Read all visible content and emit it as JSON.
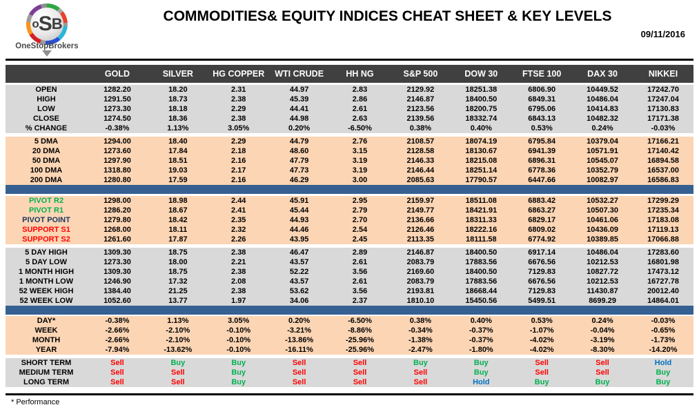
{
  "header": {
    "logo_text": "oSB",
    "logo_name": "OneStopBrokers",
    "title": "COMMODITIES& EQUITY INDICES CHEAT SHEET & KEY LEVELS",
    "date": "09/11/2016"
  },
  "colors": {
    "header_band": "#404040",
    "gray_row": "#d9d9d9",
    "peach_row": "#fcd5b4",
    "separator_blue": "#376092",
    "buy_green": "#00b050",
    "sell_red": "#ff0000",
    "hold_blue": "#0070c0",
    "pivot_navy": "#17375e"
  },
  "table": {
    "columns": [
      "GOLD",
      "SILVER",
      "HG COPPER",
      "WTI CRUDE",
      "HH NG",
      "S&P 500",
      "DOW 30",
      "FTSE 100",
      "DAX 30",
      "NIKKEI"
    ],
    "sections": [
      {
        "id": "ohlc",
        "bg": "gray",
        "rows": [
          {
            "label": "OPEN",
            "values": [
              "1282.20",
              "18.20",
              "2.31",
              "44.97",
              "2.83",
              "2129.92",
              "18251.38",
              "6806.90",
              "10449.52",
              "17242.70"
            ]
          },
          {
            "label": "HIGH",
            "values": [
              "1291.50",
              "18.73",
              "2.38",
              "45.39",
              "2.86",
              "2146.87",
              "18400.50",
              "6849.31",
              "10486.04",
              "17247.04"
            ]
          },
          {
            "label": "LOW",
            "values": [
              "1273.30",
              "18.18",
              "2.29",
              "44.41",
              "2.61",
              "2123.56",
              "18200.75",
              "6795.06",
              "10414.83",
              "17130.83"
            ]
          },
          {
            "label": "CLOSE",
            "values": [
              "1274.50",
              "18.36",
              "2.38",
              "44.98",
              "2.63",
              "2139.56",
              "18332.74",
              "6843.13",
              "10482.32",
              "17171.38"
            ]
          },
          {
            "label": "% CHANGE",
            "values": [
              "-0.38%",
              "1.13%",
              "3.05%",
              "0.20%",
              "-6.50%",
              "0.38%",
              "0.40%",
              "0.53%",
              "0.24%",
              "-0.03%"
            ]
          }
        ]
      },
      {
        "id": "dma",
        "bg": "peach",
        "rows": [
          {
            "label": "5 DMA",
            "values": [
              "1294.00",
              "18.40",
              "2.29",
              "44.79",
              "2.76",
              "2108.57",
              "18074.19",
              "6795.84",
              "10379.04",
              "17166.21"
            ]
          },
          {
            "label": "20 DMA",
            "values": [
              "1273.60",
              "17.84",
              "2.18",
              "48.60",
              "3.15",
              "2128.58",
              "18130.67",
              "6941.39",
              "10571.91",
              "17140.42"
            ]
          },
          {
            "label": "50 DMA",
            "values": [
              "1297.90",
              "18.51",
              "2.16",
              "47.79",
              "3.19",
              "2146.33",
              "18215.08",
              "6896.31",
              "10545.07",
              "16894.58"
            ]
          },
          {
            "label": "100 DMA",
            "values": [
              "1318.80",
              "19.03",
              "2.17",
              "47.73",
              "3.19",
              "2146.44",
              "18251.14",
              "6778.36",
              "10352.79",
              "16537.00"
            ]
          },
          {
            "label": "200 DMA",
            "values": [
              "1280.80",
              "17.59",
              "2.16",
              "46.29",
              "3.00",
              "2085.63",
              "17790.57",
              "6447.66",
              "10082.97",
              "16586.83"
            ]
          }
        ]
      },
      {
        "id": "pivots",
        "bg": "peach",
        "rows": [
          {
            "label": "PIVOT R2",
            "label_color": "green",
            "values": [
              "1298.00",
              "18.98",
              "2.44",
              "45.91",
              "2.95",
              "2159.97",
              "18511.08",
              "6883.42",
              "10532.27",
              "17299.29"
            ]
          },
          {
            "label": "PIVOT R1",
            "label_color": "green",
            "values": [
              "1286.20",
              "18.67",
              "2.41",
              "45.44",
              "2.79",
              "2149.77",
              "18421.91",
              "6863.27",
              "10507.30",
              "17235.34"
            ]
          },
          {
            "label": "PIVOT POINT",
            "label_color": "navy",
            "values": [
              "1279.80",
              "18.42",
              "2.35",
              "44.93",
              "2.70",
              "2136.66",
              "18311.33",
              "6829.17",
              "10461.06",
              "17183.08"
            ]
          },
          {
            "label": "SUPPORT S1",
            "label_color": "red",
            "values": [
              "1268.00",
              "18.11",
              "2.32",
              "44.46",
              "2.54",
              "2126.46",
              "18222.16",
              "6809.02",
              "10436.09",
              "17119.13"
            ]
          },
          {
            "label": "SUPPORT S2",
            "label_color": "red",
            "values": [
              "1261.60",
              "17.87",
              "2.26",
              "43.95",
              "2.45",
              "2113.35",
              "18111.58",
              "6774.92",
              "10389.85",
              "17066.88"
            ]
          }
        ]
      },
      {
        "id": "hilo",
        "bg": "gray",
        "rows": [
          {
            "label": "5 DAY HIGH",
            "values": [
              "1309.30",
              "18.75",
              "2.38",
              "46.47",
              "2.89",
              "2146.87",
              "18400.50",
              "6917.14",
              "10486.04",
              "17283.60"
            ]
          },
          {
            "label": "5 DAY LOW",
            "values": [
              "1273.30",
              "18.00",
              "2.21",
              "43.57",
              "2.61",
              "2083.79",
              "17883.56",
              "6676.56",
              "10212.53",
              "16801.98"
            ]
          },
          {
            "label": "1 MONTH HIGH",
            "values": [
              "1309.30",
              "18.75",
              "2.38",
              "52.22",
              "3.56",
              "2169.60",
              "18400.50",
              "7129.83",
              "10827.72",
              "17473.12"
            ]
          },
          {
            "label": "1 MONTH LOW",
            "values": [
              "1246.90",
              "17.32",
              "2.08",
              "43.57",
              "2.61",
              "2083.79",
              "17883.56",
              "6676.56",
              "10212.53",
              "16727.78"
            ]
          },
          {
            "label": "52 WEEK HIGH",
            "values": [
              "1384.40",
              "21.25",
              "2.38",
              "53.62",
              "3.56",
              "2193.81",
              "18668.44",
              "7129.83",
              "11430.87",
              "20012.40"
            ]
          },
          {
            "label": "52 WEEK LOW",
            "values": [
              "1052.60",
              "13.77",
              "1.97",
              "34.06",
              "2.37",
              "1810.10",
              "15450.56",
              "5499.51",
              "8699.29",
              "14864.01"
            ]
          }
        ]
      },
      {
        "id": "performance",
        "bg": "peach",
        "rows": [
          {
            "label": "DAY*",
            "values": [
              "-0.38%",
              "1.13%",
              "3.05%",
              "0.20%",
              "-6.50%",
              "0.38%",
              "0.40%",
              "0.53%",
              "0.24%",
              "-0.03%"
            ]
          },
          {
            "label": "WEEK",
            "values": [
              "-2.66%",
              "-2.10%",
              "-0.10%",
              "-3.21%",
              "-8.86%",
              "-0.34%",
              "-0.37%",
              "-1.07%",
              "-0.04%",
              "-0.65%"
            ]
          },
          {
            "label": "MONTH",
            "values": [
              "-2.66%",
              "-2.10%",
              "-0.10%",
              "-13.86%",
              "-25.96%",
              "-1.38%",
              "-0.37%",
              "-4.02%",
              "-3.19%",
              "-1.73%"
            ]
          },
          {
            "label": "YEAR",
            "values": [
              "-7.94%",
              "-13.62%",
              "-0.10%",
              "-16.11%",
              "-25.96%",
              "-2.47%",
              "-1.80%",
              "-4.02%",
              "-8.30%",
              "-14.20%"
            ]
          }
        ]
      },
      {
        "id": "signals",
        "bg": "gray",
        "signal": true,
        "rows": [
          {
            "label": "SHORT TERM",
            "values": [
              "Sell",
              "Buy",
              "Buy",
              "Sell",
              "Sell",
              "Buy",
              "Buy",
              "Sell",
              "Sell",
              "Hold"
            ]
          },
          {
            "label": "MEDIUM TERM",
            "values": [
              "Sell",
              "Sell",
              "Buy",
              "Sell",
              "Sell",
              "Sell",
              "Buy",
              "Sell",
              "Sell",
              "Buy"
            ]
          },
          {
            "label": "LONG TERM",
            "values": [
              "Sell",
              "Sell",
              "Buy",
              "Sell",
              "Sell",
              "Sell",
              "Hold",
              "Buy",
              "Buy",
              "Buy"
            ]
          }
        ]
      }
    ]
  },
  "footer": {
    "note": "* Performance"
  }
}
